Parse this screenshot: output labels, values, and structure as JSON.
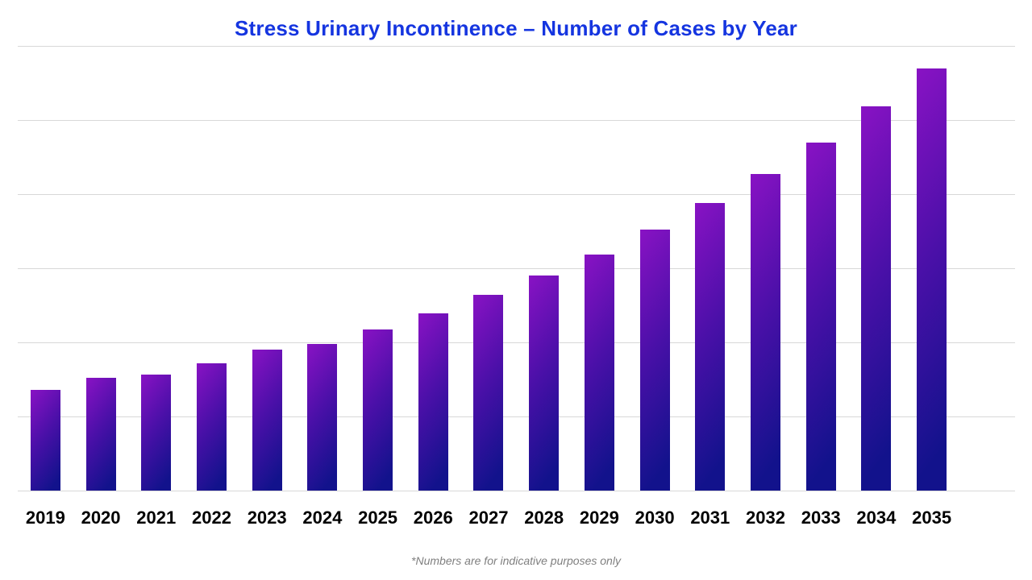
{
  "title": {
    "text": "Stress Urinary Incontinence – Number of Cases by Year",
    "color": "#1535e0"
  },
  "footer": {
    "note": "*Numbers are for indicative purposes only"
  },
  "colors": {
    "title_blue": "#1535e0",
    "gridline_gray": "#d8d8d8",
    "bar_gradient_start": "#8912c4",
    "bar_gradient_mid": "#4a10a8",
    "bar_gradient_end": "#12128c",
    "x_label_black": "#000000",
    "footnote_gray": "#7f7f7f"
  },
  "chart_data": {
    "type": "bar",
    "title": "Stress Urinary Incontinence – Number of Cases by Year",
    "xlabel": "",
    "ylabel": "",
    "categories": [
      "2019",
      "2020",
      "2021",
      "2022",
      "2023",
      "2024",
      "2025",
      "2026",
      "2027",
      "2028",
      "2029",
      "2030",
      "2031",
      "2032",
      "2033",
      "2034",
      "2035"
    ],
    "values": [
      136,
      152,
      157,
      172,
      190,
      198,
      217,
      239,
      264,
      290,
      319,
      352,
      388,
      427,
      470,
      518,
      570
    ],
    "value_units": "indicative (no y-axis labels shown)",
    "ylim": [
      0,
      600
    ],
    "gridline_interval": 100,
    "grid": true,
    "y_axis_labels_visible": false,
    "legend": "none",
    "annotation": "*Numbers are for indicative purposes only"
  }
}
